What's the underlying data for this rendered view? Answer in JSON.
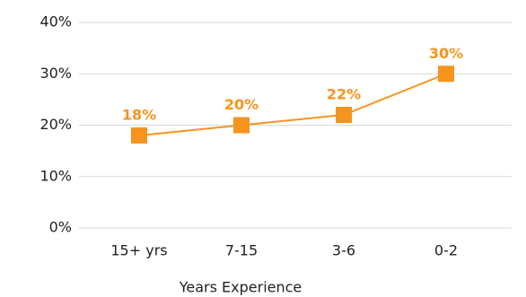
{
  "chart_data": {
    "type": "line",
    "x_label": "Years Experience",
    "categories": [
      "15+ yrs",
      "7-15",
      "3-6",
      "0-2"
    ],
    "values": [
      18,
      20,
      22,
      30
    ],
    "value_labels": [
      "18%",
      "20%",
      "22%",
      "30%"
    ],
    "color": "#f7941d",
    "ylim": [
      0,
      40
    ],
    "yticks": [
      {
        "value": 0,
        "label": "0%"
      },
      {
        "value": 10,
        "label": "10%"
      },
      {
        "value": 20,
        "label": "20%"
      },
      {
        "value": 30,
        "label": "30%"
      },
      {
        "value": 40,
        "label": "40%"
      }
    ],
    "grid": true
  }
}
